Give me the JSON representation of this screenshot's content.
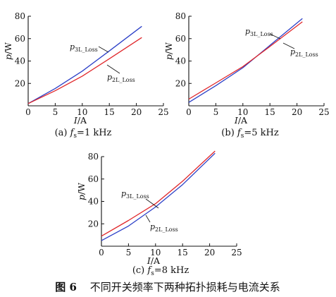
{
  "chart_data": [
    {
      "type": "line",
      "caption": {
        "prefix": "(a) ",
        "var": "f",
        "sub": "s",
        "rest": "=1 kHz"
      },
      "xlabel": {
        "var": "I",
        "unit": "/A"
      },
      "ylabel": {
        "var": "p",
        "unit": "/W"
      },
      "xlim": [
        0,
        25
      ],
      "ylim": [
        0,
        80
      ],
      "xticks": [
        0,
        5,
        10,
        15,
        20,
        25
      ],
      "yticks": [
        20,
        40,
        60,
        80
      ],
      "series": [
        {
          "name": "p3L_Loss",
          "label_main": "p",
          "label_sub": "3L_Loss",
          "color": "#2b3fc7",
          "x": [
            0,
            5,
            10,
            15,
            21
          ],
          "y": [
            2,
            15.5,
            31,
            49,
            71
          ]
        },
        {
          "name": "p2L_Loss",
          "label_main": "p",
          "label_sub": "2L_Loss",
          "color": "#e0262a",
          "x": [
            0,
            5,
            10,
            15,
            21
          ],
          "y": [
            2,
            13.5,
            26.5,
            42,
            61
          ]
        }
      ]
    },
    {
      "type": "line",
      "caption": {
        "prefix": "(b) ",
        "var": "f",
        "sub": "s",
        "rest": "=5 kHz"
      },
      "xlabel": {
        "var": "I",
        "unit": "/A"
      },
      "ylabel": {
        "var": "p",
        "unit": "/W"
      },
      "xlim": [
        0,
        25
      ],
      "ylim": [
        0,
        80
      ],
      "xticks": [
        0,
        5,
        10,
        15,
        20,
        25
      ],
      "yticks": [
        20,
        40,
        60,
        80
      ],
      "series": [
        {
          "name": "p3L_Loss",
          "label_main": "p",
          "label_sub": "3L_Loss",
          "color": "#2b3fc7",
          "x": [
            0,
            5,
            10,
            15,
            21
          ],
          "y": [
            3,
            18,
            34,
            54,
            78
          ]
        },
        {
          "name": "p2L_Loss",
          "label_main": "p",
          "label_sub": "2L_Loss",
          "color": "#e0262a",
          "x": [
            0,
            5,
            10,
            15,
            21
          ],
          "y": [
            6,
            20.5,
            35,
            53,
            75
          ]
        }
      ]
    },
    {
      "type": "line",
      "caption": {
        "prefix": "(c) ",
        "var": "f",
        "sub": "s",
        "rest": "=8 kHz"
      },
      "xlabel": {
        "var": "I",
        "unit": "/A"
      },
      "ylabel": {
        "var": "p",
        "unit": "/W"
      },
      "xlim": [
        0,
        25
      ],
      "ylim": [
        0,
        80
      ],
      "xticks": [
        0,
        5,
        10,
        15,
        20,
        25
      ],
      "yticks": [
        20,
        40,
        60,
        80
      ],
      "series": [
        {
          "name": "p3L_Loss",
          "label_main": "p",
          "label_sub": "3L_Loss",
          "color": "#2b3fc7",
          "x": [
            0,
            5,
            10,
            15,
            21
          ],
          "y": [
            5,
            18,
            35,
            55,
            83
          ]
        },
        {
          "name": "p2L_Loss",
          "label_main": "p",
          "label_sub": "2L_Loss",
          "color": "#e0262a",
          "x": [
            0,
            5,
            10,
            15,
            21
          ],
          "y": [
            9,
            23,
            38,
            58,
            85
          ]
        }
      ]
    }
  ],
  "figure_caption": {
    "number": "图 6",
    "text": "不同开关频率下两种拓扑损耗与电流关系"
  }
}
